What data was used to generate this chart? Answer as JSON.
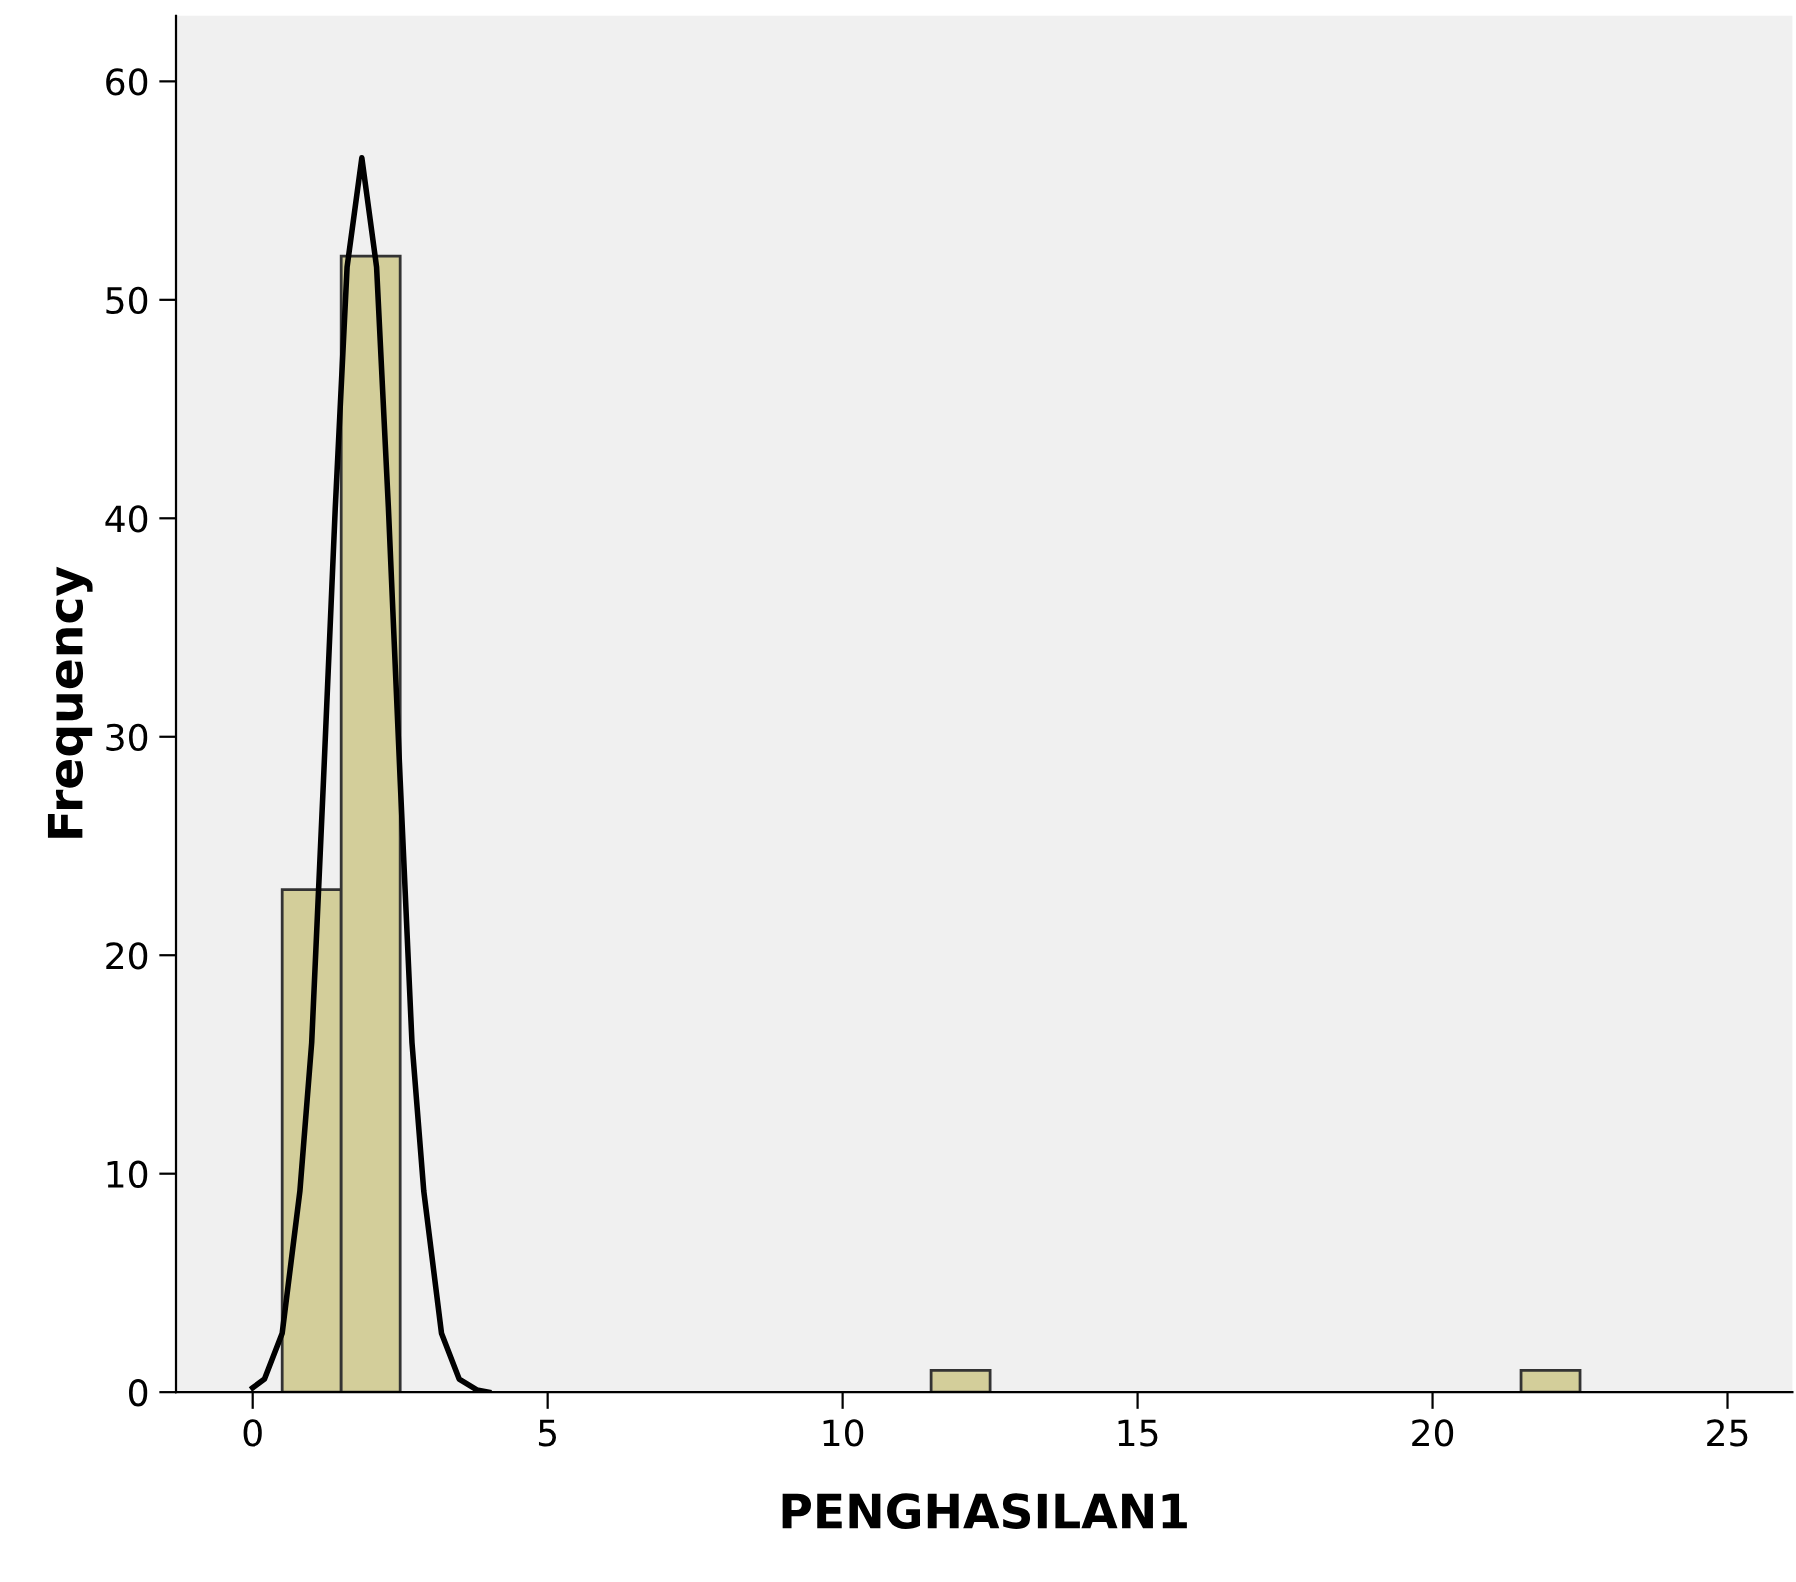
{
  "chart_data": {
    "type": "histogram",
    "xlabel": "PENGHASILAN1",
    "ylabel": "Frequency",
    "bins": [
      0.5,
      1.5,
      2.5,
      3.5,
      4.5,
      5.5,
      6.5,
      7.5,
      8.5,
      9.5,
      10.5,
      11.5,
      12.5,
      13.5,
      14.5,
      15.5,
      16.5,
      17.5,
      18.5,
      19.5,
      20.5,
      21.5,
      22.5
    ],
    "values": [
      23,
      52,
      0,
      0,
      0,
      0,
      0,
      0,
      0,
      0,
      0,
      1,
      0,
      0,
      0,
      0,
      0,
      0,
      0,
      0,
      0,
      1
    ],
    "color": "#d3ce9a",
    "series": [
      {
        "type": "line",
        "color": "#000000",
        "x": [
          0,
          0.2,
          0.5,
          0.8,
          1.0,
          1.2,
          1.4,
          1.6,
          1.85,
          2.1,
          2.3,
          2.5,
          2.7,
          2.9,
          3.2,
          3.5,
          3.8,
          4.0
        ],
        "values": [
          0.2,
          0.6,
          2.7,
          9.2,
          16,
          28,
          40.5,
          51.5,
          56.5,
          51.5,
          40.5,
          28,
          16,
          9.2,
          2.7,
          0.6,
          0.1,
          0
        ]
      }
    ],
    "xlim": [
      -1.3,
      26.1
    ],
    "ylim": [
      0,
      63
    ],
    "xticks": [
      0,
      5,
      10,
      15,
      20,
      25
    ],
    "yticks": [
      0,
      10,
      20,
      30,
      40,
      50,
      60
    ],
    "grid": false,
    "legend": false
  }
}
